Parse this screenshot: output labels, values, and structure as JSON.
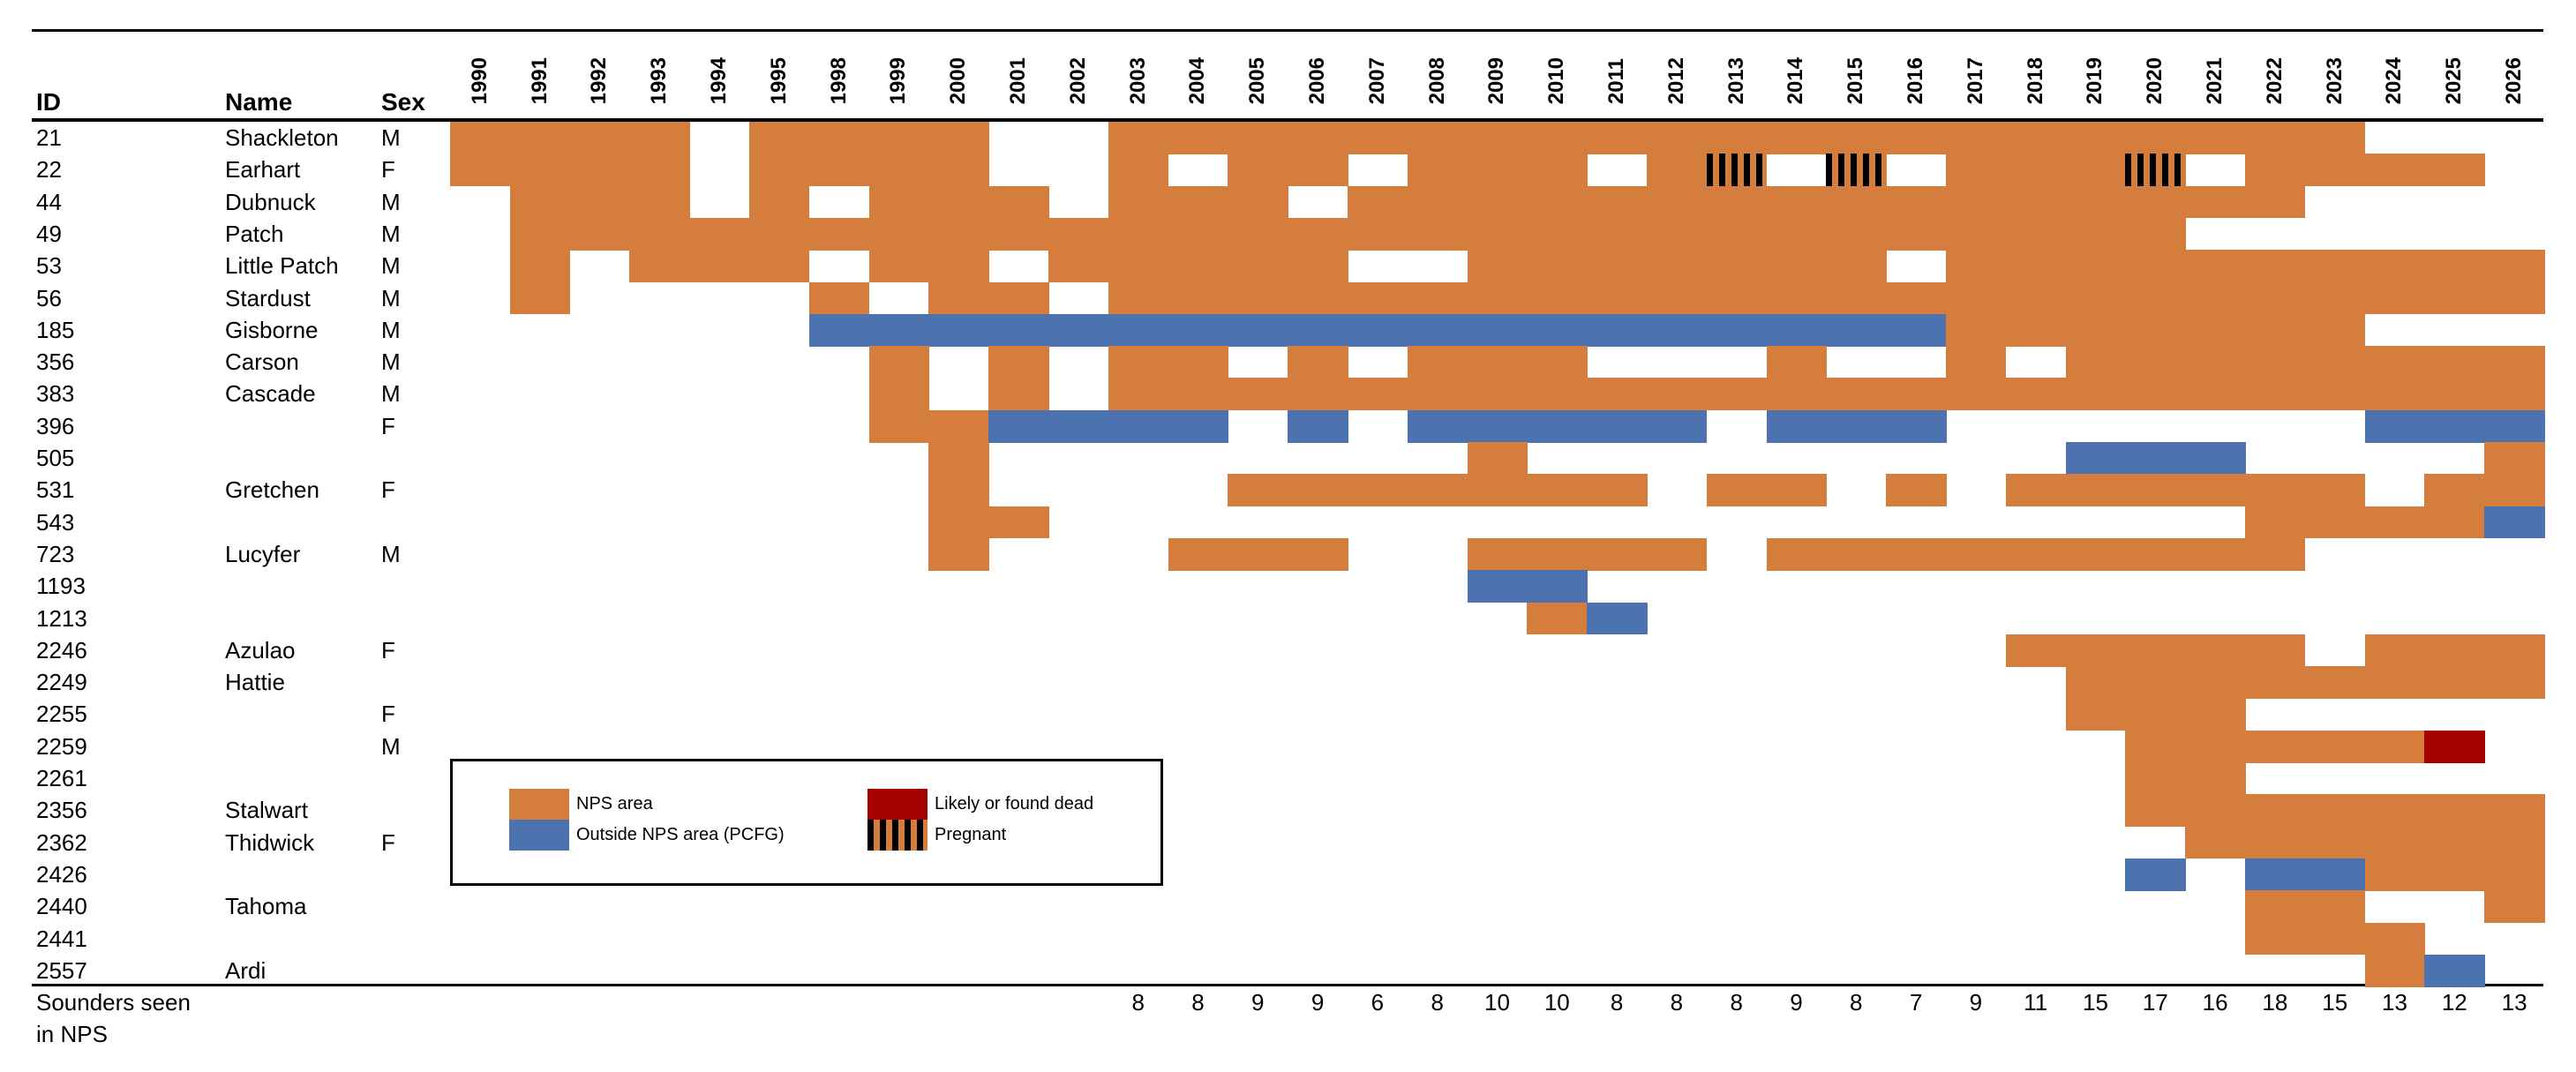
{
  "chart_data": {
    "type": "heatmap",
    "title": "",
    "headers": {
      "id": "ID",
      "name": "Name",
      "sex": "Sex"
    },
    "years": [
      "1990",
      "1991",
      "1992",
      "1993",
      "1994",
      "1995",
      "1998",
      "1999",
      "2000",
      "2001",
      "2002",
      "2003",
      "2004",
      "2005",
      "2006",
      "2007",
      "2008",
      "2009",
      "2010",
      "2011",
      "2012",
      "2013",
      "2014",
      "2015",
      "2016",
      "2017",
      "2018",
      "2019",
      "2020",
      "2021",
      "2022",
      "2023",
      "2024",
      "2025",
      "2026"
    ],
    "status_codes": {
      "O": "NPS area",
      "B": "Outside NPS area (PCFG)",
      "D": "Likely or found dead",
      "P": "Pregnant",
      ".": "not seen"
    },
    "colors": {
      "O": "#D57D3C",
      "B": "#4C73B0",
      "D": "#A50000",
      "P_stripe": "#000000"
    },
    "rows": [
      {
        "id": "21",
        "name": "Shackleton",
        "sex": "M",
        "years": "OOOO.OOOO..OOOOOOOOOOOOOOOOOOOOO..."
      },
      {
        "id": "22",
        "name": "Earhart",
        "sex": "F",
        "years": "OOOO.OOOO..O.OO.OOO.OP.P.OOOP.OOOO."
      },
      {
        "id": "44",
        "name": "Dubnuck",
        "sex": "M",
        "years": ".OOO.O.OOO.OOO.OOOOOOOOOOOOOOOO...."
      },
      {
        "id": "49",
        "name": "Patch",
        "sex": "M",
        "years": ".OOOOOOOOOOOOOOOOOOOOOOOOOOOO......"
      },
      {
        "id": "53",
        "name": "Little Patch",
        "sex": "M",
        "years": ".O.OOO.OO.OOOOO..OOOOOOO.OOOOOOOOOO"
      },
      {
        "id": "56",
        "name": "Stardust",
        "sex": "M",
        "years": ".O....O.OO.OOOOOOOOOOOOOOOOOOOOOOOO"
      },
      {
        "id": "185",
        "name": "Gisborne",
        "sex": "M",
        "years": "......BBBBBBBBBBBBBBBBBBBOOOOOOO..."
      },
      {
        "id": "356",
        "name": "Carson",
        "sex": "M",
        "years": ".......O.O.OO.O.OOO...O..O.OOOOOOOO"
      },
      {
        "id": "383",
        "name": "Cascade",
        "sex": "M",
        "years": ".......O.O.OOOOOOOOOOOOOOOOOOOOOOOO"
      },
      {
        "id": "396",
        "name": "",
        "sex": "F",
        "years": ".......OOBBBB.B.BBBBB.BBB.......BBB"
      },
      {
        "id": "505",
        "name": "",
        "sex": "",
        "years": "........O........O.........BBB....O"
      },
      {
        "id": "531",
        "name": "Gretchen",
        "sex": "F",
        "years": "........O....OOOOOOO.OO.O.OOOOOO.OO"
      },
      {
        "id": "543",
        "name": "",
        "sex": "",
        "years": "........OO....................OOOOB"
      },
      {
        "id": "723",
        "name": "Lucyfer",
        "sex": "M",
        "years": "........O...OOO..OOOO.OOOOOOOOO...."
      },
      {
        "id": "1193",
        "name": "",
        "sex": "",
        "years": ".................BB................"
      },
      {
        "id": "1213",
        "name": "",
        "sex": "",
        "years": "..................OB..............."
      },
      {
        "id": "2246",
        "name": "Azulao",
        "sex": "F",
        "years": "..........................OOOOO.OOO"
      },
      {
        "id": "2249",
        "name": "Hattie",
        "sex": "",
        "years": "...........................OOOOOOOO"
      },
      {
        "id": "2255",
        "name": "",
        "sex": "F",
        "years": "...........................OOO....."
      },
      {
        "id": "2259",
        "name": "",
        "sex": "M",
        "years": "............................OOOOOD."
      },
      {
        "id": "2261",
        "name": "",
        "sex": "",
        "years": "............................OO....."
      },
      {
        "id": "2356",
        "name": "Stalwart",
        "sex": "",
        "years": "............................OOOOOOO"
      },
      {
        "id": "2362",
        "name": "Thidwick",
        "sex": "F",
        "years": ".............................OOOOOO"
      },
      {
        "id": "2426",
        "name": "",
        "sex": "",
        "years": "............................B.BBOOO"
      },
      {
        "id": "2440",
        "name": "Tahoma",
        "sex": "",
        "years": "..............................OO..O"
      },
      {
        "id": "2441",
        "name": "",
        "sex": "",
        "years": "..............................OOO.."
      },
      {
        "id": "2557",
        "name": "Ardi",
        "sex": "",
        "years": "................................OB."
      }
    ],
    "totals_label_line1": "Sounders seen",
    "totals_label_line2": "in NPS",
    "totals": [
      "",
      "",
      "",
      "",
      "",
      "",
      "",
      "",
      "",
      "",
      "",
      "8",
      "8",
      "9",
      "9",
      "6",
      "8",
      "10",
      "10",
      "8",
      "8",
      "8",
      "9",
      "8",
      "7",
      "9",
      "11",
      "15",
      "17",
      "16",
      "18",
      "15",
      "13",
      "12",
      "13"
    ],
    "legend": {
      "position": "bottom-left",
      "items": [
        {
          "key": "O",
          "label": "NPS area"
        },
        {
          "key": "B",
          "label": "Outside NPS area (PCFG)"
        },
        {
          "key": "D",
          "label": "Likely or found dead"
        },
        {
          "key": "P",
          "label": "Pregnant"
        }
      ]
    }
  }
}
